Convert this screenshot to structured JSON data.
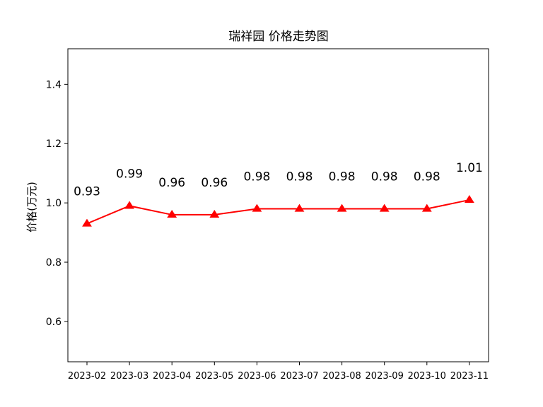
{
  "chart_data": {
    "type": "line",
    "title": "瑞祥园 价格走势图",
    "xlabel": "",
    "ylabel": "价格(万元)",
    "categories": [
      "2023-02",
      "2023-03",
      "2023-04",
      "2023-05",
      "2023-06",
      "2023-07",
      "2023-08",
      "2023-09",
      "2023-10",
      "2023-11"
    ],
    "series": [
      {
        "values": [
          0.93,
          0.99,
          0.96,
          0.96,
          0.98,
          0.98,
          0.98,
          0.98,
          0.98,
          1.01
        ],
        "color": "#ff0000",
        "marker": "triangle"
      }
    ],
    "data_labels": [
      "0.93",
      "0.99",
      "0.96",
      "0.96",
      "0.98",
      "0.98",
      "0.98",
      "0.98",
      "0.98",
      "1.01"
    ],
    "ylim": [
      0.464,
      1.52
    ],
    "yticks": [
      0.6,
      0.8,
      1.0,
      1.2,
      1.4
    ],
    "ytick_labels": [
      "0.6",
      "0.8",
      "1.0",
      "1.2",
      "1.4"
    ],
    "grid": false,
    "legend": "none"
  }
}
